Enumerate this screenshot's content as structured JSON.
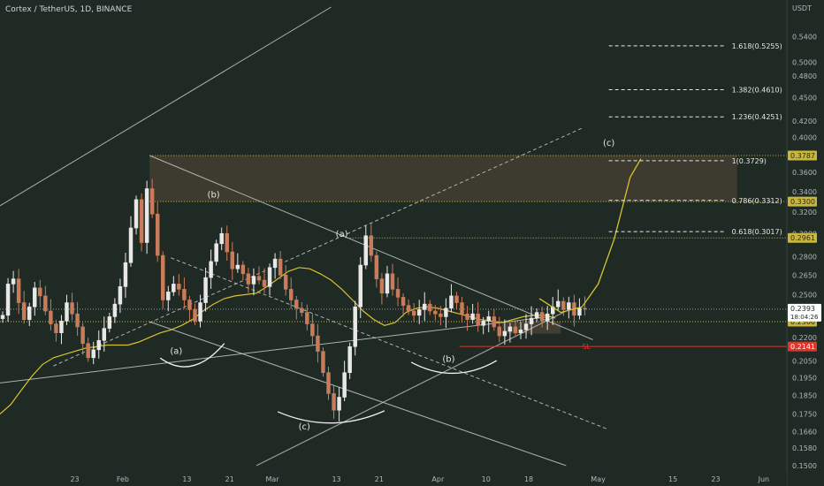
{
  "header": {
    "symbol_title": "Cortex / TetherUS, 1D, BINANCE",
    "currency": "USDT"
  },
  "colors": {
    "background": "#1f2a24",
    "up_candle": "#e8e8e8",
    "down_candle": "#c97b5a",
    "moving_average": "#d9c230",
    "channel_line": "#c8c8c8",
    "fib_line": "#e6e6e6",
    "level_line": "#c9b63a",
    "stop_loss": "#e0352b",
    "zone_fill": "#4a4234"
  },
  "chart_data": {
    "type": "candlestick",
    "y_scale": "log",
    "ylim": [
      0.148,
      0.59
    ],
    "y_ticks": [
      0.15,
      0.158,
      0.166,
      0.175,
      0.185,
      0.195,
      0.205,
      0.22,
      0.235,
      0.25,
      0.265,
      0.28,
      0.3,
      0.32,
      0.34,
      0.36,
      0.38,
      0.4,
      0.42,
      0.45,
      0.48,
      0.5,
      0.54
    ],
    "y_tick_labels": [
      "0.1500",
      "0.1580",
      "0.1660",
      "0.1750",
      "0.1850",
      "0.1950",
      "0.2050",
      "0.2200",
      "0.2350",
      "0.2500",
      "0.2650",
      "0.2800",
      "0.3000",
      "0.3200",
      "0.3400",
      "0.3600",
      "0.3800",
      "0.4000",
      "0.4200",
      "0.4500",
      "0.4800",
      "0.5000",
      "0.5400"
    ],
    "x_start": "2021-01-09",
    "x_end": "2021-06-05",
    "x_ticks": [
      {
        "date": "2021-01-23",
        "label": "23"
      },
      {
        "date": "2021-02-01",
        "label": "Feb"
      },
      {
        "date": "2021-02-13",
        "label": "13"
      },
      {
        "date": "2021-02-21",
        "label": "21"
      },
      {
        "date": "2021-03-01",
        "label": "Mar"
      },
      {
        "date": "2021-03-13",
        "label": "13"
      },
      {
        "date": "2021-03-21",
        "label": "21"
      },
      {
        "date": "2021-04-01",
        "label": "Apr"
      },
      {
        "date": "2021-04-10",
        "label": "10"
      },
      {
        "date": "2021-04-18",
        "label": "18"
      },
      {
        "date": "2021-05-01",
        "label": "May"
      },
      {
        "date": "2021-05-15",
        "label": "15"
      },
      {
        "date": "2021-05-23",
        "label": "23"
      },
      {
        "date": "2021-06-01",
        "label": "Jun"
      }
    ],
    "closes": [
      0.235,
      0.258,
      0.262,
      0.244,
      0.232,
      0.241,
      0.255,
      0.249,
      0.238,
      0.229,
      0.223,
      0.231,
      0.244,
      0.236,
      0.227,
      0.216,
      0.207,
      0.212,
      0.218,
      0.226,
      0.234,
      0.243,
      0.256,
      0.275,
      0.305,
      0.332,
      0.292,
      0.343,
      0.318,
      0.281,
      0.246,
      0.252,
      0.258,
      0.254,
      0.246,
      0.239,
      0.231,
      0.244,
      0.263,
      0.276,
      0.291,
      0.3,
      0.284,
      0.27,
      0.273,
      0.266,
      0.258,
      0.264,
      0.261,
      0.256,
      0.271,
      0.278,
      0.265,
      0.254,
      0.246,
      0.24,
      0.237,
      0.229,
      0.221,
      0.211,
      0.198,
      0.186,
      0.177,
      0.184,
      0.198,
      0.214,
      0.241,
      0.273,
      0.298,
      0.281,
      0.262,
      0.251,
      0.266,
      0.254,
      0.248,
      0.242,
      0.238,
      0.235,
      0.239,
      0.243,
      0.238,
      0.236,
      0.234,
      0.24,
      0.249,
      0.244,
      0.236,
      0.232,
      0.236,
      0.228,
      0.231,
      0.234,
      0.227,
      0.221,
      0.224,
      0.227,
      0.223,
      0.225,
      0.229,
      0.233,
      0.237,
      0.231,
      0.236,
      0.241,
      0.245,
      0.239,
      0.244,
      0.235,
      0.24,
      0.2393
    ],
    "last_price": "0.2393",
    "countdown": "18:04:26",
    "moving_average": [
      0.175,
      0.18,
      0.188,
      0.196,
      0.203,
      0.207,
      0.209,
      0.211,
      0.213,
      0.214,
      0.215,
      0.215,
      0.215,
      0.217,
      0.22,
      0.223,
      0.225,
      0.228,
      0.232,
      0.238,
      0.243,
      0.247,
      0.249,
      0.25,
      0.251,
      0.256,
      0.262,
      0.268,
      0.271,
      0.27,
      0.266,
      0.261,
      0.254,
      0.246,
      0.238,
      0.232,
      0.228,
      0.23,
      0.237,
      0.24,
      0.241,
      0.24,
      0.238,
      0.236,
      0.234,
      0.232,
      0.231,
      0.23,
      0.232,
      0.234,
      0.235,
      0.235,
      0.233
    ],
    "fib_levels": [
      {
        "ratio": "1.618",
        "price": 0.5255,
        "label": "1.618(0.5255)"
      },
      {
        "ratio": "1.382",
        "price": 0.461,
        "label": "1.382(0.4610)"
      },
      {
        "ratio": "1.236",
        "price": 0.4251,
        "label": "1.236(0.4251)"
      },
      {
        "ratio": "1",
        "price": 0.3729,
        "label": "1(0.3729)"
      },
      {
        "ratio": "0.786",
        "price": 0.3312,
        "label": "0.786(0.3312)"
      },
      {
        "ratio": "0.618",
        "price": 0.3017,
        "label": "0.618(0.3017)"
      }
    ],
    "horizontal_levels": [
      {
        "price": 0.3787,
        "label": "0.3787"
      },
      {
        "price": 0.33,
        "label": "0.3300"
      },
      {
        "price": 0.2961,
        "label": "0.2961"
      }
    ],
    "price_tags": [
      {
        "price": 0.2306,
        "label": "0.2306"
      },
      {
        "price": 0.2141,
        "label": "0.2141"
      }
    ],
    "stop_loss": {
      "price": 0.2141,
      "label": "SL"
    },
    "wave_labels": [
      {
        "label": "(a)",
        "date": "2021-02-11",
        "price": 0.2095
      },
      {
        "label": "(b)",
        "date": "2021-02-18",
        "price": 0.334
      },
      {
        "label": "(c)",
        "date": "2021-03-07",
        "price": 0.167
      },
      {
        "label": "(a)",
        "date": "2021-03-14",
        "price": 0.297
      },
      {
        "label": "(b)",
        "date": "2021-04-03",
        "price": 0.2045
      },
      {
        "label": "(c)",
        "date": "2021-05-03",
        "price": 0.39
      }
    ]
  }
}
